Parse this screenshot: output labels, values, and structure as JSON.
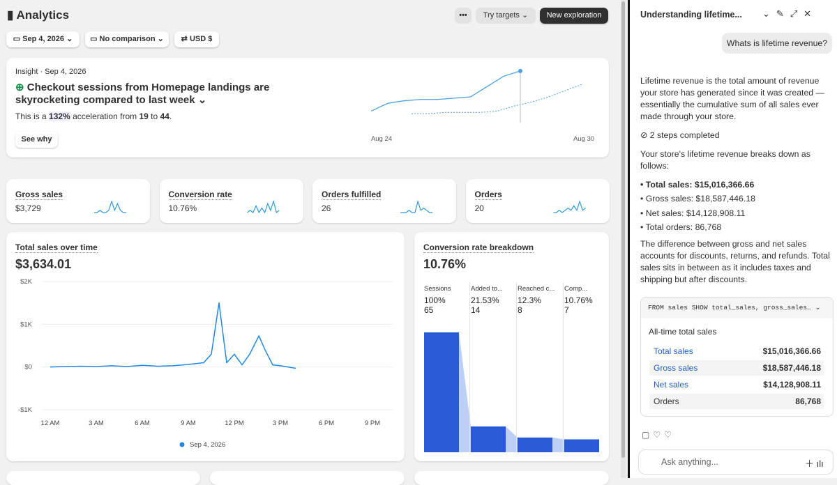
{
  "header": {
    "title": "Analytics",
    "more": "•••",
    "try_targets": "Try targets",
    "new_exploration": "New exploration"
  },
  "filters": {
    "date": "Sep 4, 2026",
    "comparison": "No comparison",
    "currency": "USD $"
  },
  "insight": {
    "label": "Insight · Sep 4, 2026",
    "headline": "Checkout sessions from Homepage landings are skyrocketing compared to last week",
    "desc_prefix": "This is a",
    "pct": "132%",
    "mid": "acceleration from",
    "from": "19",
    "to_word": "to",
    "to": "44",
    "end": ".",
    "button": "See why",
    "chart": {
      "type": "line",
      "current": [
        13,
        19,
        21,
        22,
        22,
        23,
        24,
        32,
        40,
        44
      ],
      "previous": [
        11,
        11,
        12,
        12,
        12,
        13,
        17,
        20,
        24,
        29,
        34
      ],
      "ylim": [
        10,
        45
      ],
      "x_labels": [
        "Aug 24",
        "Aug 30"
      ],
      "color": "#4a9fe0"
    }
  },
  "metrics": [
    {
      "label": "Gross sales",
      "value": "$3,729",
      "spark": [
        1,
        1,
        2,
        1,
        1,
        2,
        6,
        2,
        5,
        2,
        1,
        1
      ]
    },
    {
      "label": "Conversion rate",
      "value": "10.76%",
      "spark": [
        1,
        2,
        1,
        4,
        1,
        3,
        1,
        5,
        2,
        6,
        1,
        2
      ]
    },
    {
      "label": "Orders fulfilled",
      "value": "26",
      "spark": [
        1,
        1,
        1,
        2,
        1,
        1,
        6,
        2,
        3,
        2,
        1,
        1
      ]
    },
    {
      "label": "Orders",
      "value": "20",
      "spark": [
        1,
        1,
        2,
        1,
        2,
        3,
        2,
        4,
        2,
        6,
        2,
        3
      ]
    }
  ],
  "total_sales": {
    "title": "Total sales over time",
    "total": "$3,634.01",
    "chart": {
      "type": "line",
      "x": [
        0,
        1,
        2,
        3,
        4,
        5,
        6,
        7,
        8,
        9,
        10,
        10.5,
        11,
        11.5,
        12,
        12.5,
        13,
        13.6,
        14,
        14.5,
        15,
        16
      ],
      "values": [
        0,
        10,
        20,
        10,
        30,
        10,
        40,
        20,
        30,
        60,
        100,
        300,
        1500,
        100,
        300,
        50,
        300,
        730,
        400,
        50,
        30,
        -30
      ],
      "xlim": [
        -1.5,
        22.5
      ],
      "ylim": [
        -1000,
        2000
      ],
      "xticks": [
        {
          "value": 0,
          "label": "12 AM"
        },
        {
          "value": 3,
          "label": "3 AM"
        },
        {
          "value": 6,
          "label": "6 AM"
        },
        {
          "value": 9,
          "label": "9 AM"
        },
        {
          "value": 12,
          "label": "12 PM"
        },
        {
          "value": 15,
          "label": "3 PM"
        },
        {
          "value": 18,
          "label": "6 PM"
        },
        {
          "value": 21,
          "label": "9 PM"
        }
      ],
      "yticks": [
        {
          "value": 2000,
          "label": "$2K"
        },
        {
          "value": 1000,
          "label": "$1K"
        },
        {
          "value": 0,
          "label": "$0"
        },
        {
          "value": -1000,
          "label": "-$1K"
        }
      ],
      "legend": "Sep 4, 2026",
      "color": "#1e88e5"
    }
  },
  "conversion": {
    "title": "Conversion rate breakdown",
    "total": "10.76%",
    "chart": {
      "type": "bar",
      "categories": [
        "Sessions",
        "Added to...",
        "Reached c...",
        "Comp..."
      ],
      "values": [
        100,
        21.53,
        12.3,
        10.76
      ],
      "value_labels": [
        "100%",
        "21.53%",
        "12.3%",
        "10.76%"
      ],
      "counts": [
        65,
        14,
        8,
        7
      ],
      "ylim": [
        0,
        100
      ],
      "color": "#2a5bd7"
    }
  },
  "panel": {
    "title": "Understanding lifetime...",
    "question": "Whats is lifetime revenue?",
    "answer_1": "Lifetime revenue is the total amount of revenue your store has generated since it was created — essentially the cumulative sum of all sales ever made through your store.",
    "steps": "2 steps completed",
    "answer_2": "Your store's lifetime revenue breaks down as follows:",
    "bullets": [
      "Total sales: $15,016,366.66",
      "Gross sales: $18,587,446.18",
      "Net sales: $14,128,908.11",
      "Total orders: 86,768"
    ],
    "answer_3": "The difference between gross and net sales accounts for discounts, returns, and refunds. Total sales sits in between as it includes taxes and shipping but after discounts.",
    "query": "FROM sales SHOW total_sales, gross_sales…",
    "table": {
      "title": "All-time total sales",
      "rows": [
        [
          "Total sales",
          "$15,016,366.66"
        ],
        [
          "Gross sales",
          "$18,587,446.18"
        ],
        [
          "Net sales",
          "$14,128,908.11"
        ],
        [
          "Orders",
          "86,768"
        ]
      ]
    },
    "input": "Ask anything..."
  }
}
